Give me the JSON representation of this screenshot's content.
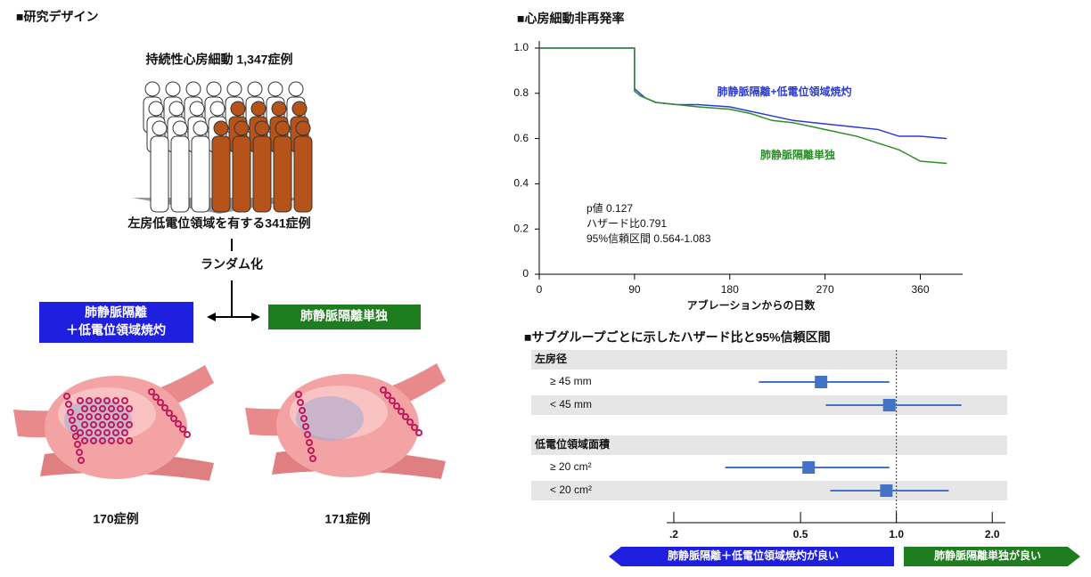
{
  "design": {
    "title": "■研究デザイン",
    "population": "持続性心房細動 1,347症例",
    "subset": "左房低電位領域を有する341症例",
    "randomization": "ランダム化",
    "arm_a": {
      "lines": [
        "肺静脈隔離",
        "＋低電位領域焼灼"
      ],
      "n": "170症例"
    },
    "arm_b": {
      "label": "肺静脈隔離単独",
      "n": "171症例"
    }
  },
  "chart_data": [
    {
      "type": "line",
      "title": "■心房細動非再発率",
      "xlabel": "アブレーションからの日数",
      "xlim": [
        0,
        400
      ],
      "xticks": [
        0,
        90,
        180,
        270,
        360
      ],
      "ylim": [
        0,
        1
      ],
      "yticks": [
        0,
        {
          "value": 0.2,
          "label": "0.2"
        },
        {
          "value": 0.4,
          "label": "0.4"
        },
        {
          "value": 0.6,
          "label": "0.6"
        },
        {
          "value": 0.8,
          "label": "0.8"
        },
        {
          "value": 1,
          "label": "1.0"
        }
      ],
      "annotations": [
        "p値 0.127",
        "ハザード比0.791",
        "95%信頼区間 0.564-1.083"
      ],
      "series": [
        {
          "name": "肺静脈隔離+低電位領域焼灼",
          "color": "#2a3bd6",
          "x": [
            0,
            90,
            90,
            95,
            100,
            110,
            130,
            150,
            180,
            200,
            220,
            240,
            260,
            280,
            300,
            320,
            340,
            360,
            385
          ],
          "values": [
            1,
            1,
            0.82,
            0.8,
            0.78,
            0.76,
            0.75,
            0.75,
            0.74,
            0.72,
            0.7,
            0.68,
            0.67,
            0.66,
            0.65,
            0.64,
            0.61,
            0.61,
            0.6
          ]
        },
        {
          "name": "肺静脈隔離単独",
          "color": "#2e8b2e",
          "x": [
            0,
            90,
            90,
            95,
            100,
            110,
            130,
            150,
            180,
            200,
            220,
            240,
            260,
            280,
            300,
            320,
            340,
            360,
            385
          ],
          "values": [
            1,
            1,
            0.81,
            0.79,
            0.78,
            0.76,
            0.75,
            0.74,
            0.73,
            0.71,
            0.68,
            0.67,
            0.65,
            0.63,
            0.61,
            0.58,
            0.55,
            0.5,
            0.49
          ]
        }
      ]
    },
    {
      "type": "forest",
      "title": "■サブグループごとに示したハザード比と95%信頼区間",
      "log_x": true,
      "xlim": [
        0.19,
        2.2
      ],
      "xticks": [
        {
          "value": 0.2,
          "label": ".2"
        },
        {
          "value": 0.5,
          "label": "0.5"
        },
        {
          "value": 1,
          "label": "1.0"
        },
        {
          "value": 2,
          "label": "2.0"
        }
      ],
      "reference": 1,
      "color": "#4472c4",
      "groups": [
        {
          "label": "左房径",
          "rows": [
            {
              "label": "≥ 45 mm",
              "hr": 0.58,
              "ci": [
                0.37,
                0.95
              ]
            },
            {
              "label": "< 45 mm",
              "hr": 0.95,
              "ci": [
                0.6,
                1.6
              ]
            }
          ]
        },
        {
          "label": "低電位領域面積",
          "rows": [
            {
              "label": "≥ 20 cm²",
              "hr": 0.53,
              "ci": [
                0.29,
                0.95
              ]
            },
            {
              "label": "< 20 cm²",
              "hr": 0.93,
              "ci": [
                0.62,
                1.46
              ]
            }
          ]
        }
      ],
      "favors": [
        "肺静脈隔離＋低電位領域焼灼が良い",
        "肺静脈隔離単独が良い"
      ]
    }
  ]
}
